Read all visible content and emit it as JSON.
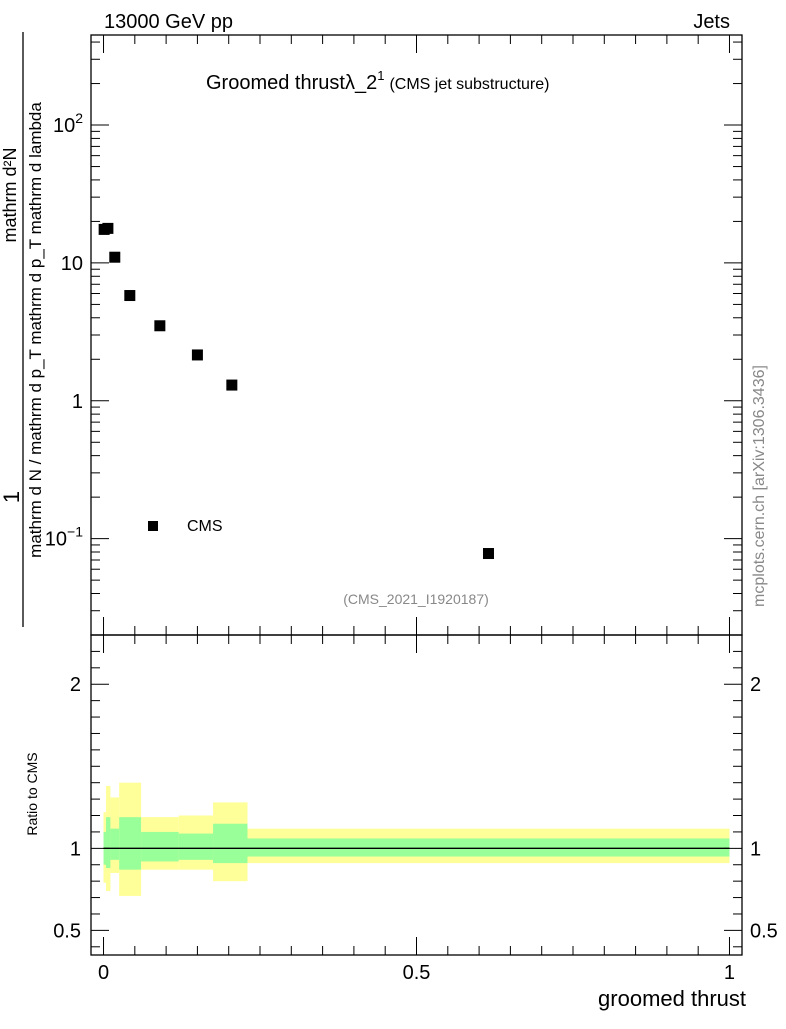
{
  "header": {
    "left": "13000 GeV pp",
    "right": "Jets"
  },
  "plot_title": {
    "main": "Groomed thrust",
    "lambda": "λ_2",
    "sup": "1",
    "paren": "(CMS jet substructure)"
  },
  "side_label": "mcplots.cern.ch [arXiv:1306.3436]",
  "analysis_id": "(CMS_2021_I1920187)",
  "y_label": {
    "numerator": "mathrm d²N",
    "denominator": "mathrm d N / mathrm d p_T mathrm d p_T mathrm d lambda",
    "leading": "1"
  },
  "ratio_label": "Ratio to CMS",
  "x_label": "groomed thrust",
  "legend": {
    "label": "CMS"
  },
  "colors": {
    "band_outer": "#ffff99",
    "band_inner": "#99ff99",
    "marker": "#000000"
  },
  "chart_data": [
    {
      "type": "scatter",
      "yscale": "log",
      "xlim": [
        -0.02,
        1.02
      ],
      "ylim": [
        0.02,
        450
      ],
      "y_ticks": [
        {
          "value": 100,
          "base": "10",
          "exp": "2"
        },
        {
          "value": 10,
          "base": "10",
          "exp": ""
        },
        {
          "value": 1,
          "base": "1",
          "exp": ""
        },
        {
          "value": 0.1,
          "base": "10",
          "exp": "−1"
        }
      ],
      "series": [
        {
          "name": "CMS",
          "x": [
            0.001,
            0.007,
            0.018,
            0.042,
            0.09,
            0.15,
            0.205,
            0.615
          ],
          "y": [
            17.5,
            17.8,
            11.0,
            5.8,
            3.5,
            2.15,
            1.3,
            0.078
          ]
        }
      ]
    },
    {
      "type": "area",
      "title": "ratio",
      "xlim": [
        -0.02,
        1.02
      ],
      "ylim": [
        0.35,
        2.3
      ],
      "y_ticks": [
        "2",
        "1",
        "0.5"
      ],
      "y_tick_values": [
        2,
        1,
        0.5
      ],
      "x_ticks": [
        "0",
        "0.5",
        "1"
      ],
      "x_tick_values": [
        0,
        0.5,
        1
      ],
      "reference": 1,
      "bins": [
        {
          "x0": 0.0,
          "x1": 0.004,
          "in_lo": 0.9,
          "in_hi": 1.1,
          "out_lo": 0.79,
          "out_hi": 1.22
        },
        {
          "x0": 0.004,
          "x1": 0.011,
          "in_lo": 0.88,
          "in_hi": 1.19,
          "out_lo": 0.74,
          "out_hi": 1.38
        },
        {
          "x0": 0.011,
          "x1": 0.025,
          "in_lo": 0.93,
          "in_hi": 1.12,
          "out_lo": 0.85,
          "out_hi": 1.31
        },
        {
          "x0": 0.025,
          "x1": 0.06,
          "in_lo": 0.87,
          "in_hi": 1.19,
          "out_lo": 0.71,
          "out_hi": 1.4
        },
        {
          "x0": 0.06,
          "x1": 0.12,
          "in_lo": 0.92,
          "in_hi": 1.1,
          "out_lo": 0.87,
          "out_hi": 1.19
        },
        {
          "x0": 0.12,
          "x1": 0.175,
          "in_lo": 0.93,
          "in_hi": 1.09,
          "out_lo": 0.87,
          "out_hi": 1.2
        },
        {
          "x0": 0.175,
          "x1": 0.23,
          "in_lo": 0.91,
          "in_hi": 1.15,
          "out_lo": 0.8,
          "out_hi": 1.28
        },
        {
          "x0": 0.23,
          "x1": 1.0,
          "in_lo": 0.95,
          "in_hi": 1.06,
          "out_lo": 0.91,
          "out_hi": 1.12
        }
      ]
    }
  ]
}
